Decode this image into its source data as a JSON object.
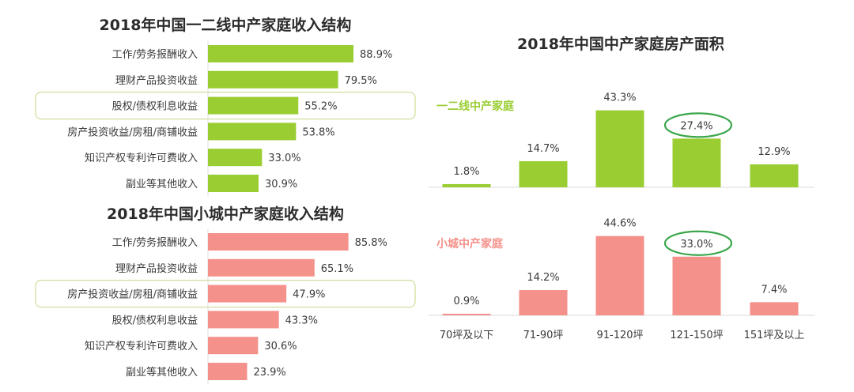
{
  "colors": {
    "green": "#9ACD32",
    "pink": "#F4918A",
    "highlight_outline": "#cfe0a0",
    "circle": "#3aa64a",
    "text": "#3a3a3a"
  },
  "chart_data": [
    {
      "type": "bar",
      "orientation": "horizontal",
      "title": "2018年中国一二线中产家庭收入结构",
      "categories": [
        "工作/劳务报酬收入",
        "理财产品投资收益",
        "股权/债权利息收益",
        "房产投资收益/房租/商铺收益",
        "知识产权专利许可费收入",
        "副业等其他收入"
      ],
      "values": [
        88.9,
        79.5,
        55.2,
        53.8,
        33.0,
        30.9
      ],
      "value_labels": [
        "88.9%",
        "79.5%",
        "55.2%",
        "53.8%",
        "33.0%",
        "30.9%"
      ],
      "highlighted_category": "股权/债权利息收益",
      "color": "#9ACD32"
    },
    {
      "type": "bar",
      "orientation": "horizontal",
      "title": "2018年中国小城中产家庭收入结构",
      "categories": [
        "工作/劳务报酬收入",
        "理财产品投资收益",
        "房产投资收益/房租/商铺收益",
        "股权/债权利息收益",
        "知识产权专利许可费收入",
        "副业等其他收入"
      ],
      "values": [
        85.8,
        65.1,
        47.9,
        43.3,
        30.6,
        23.9
      ],
      "value_labels": [
        "85.8%",
        "65.1%",
        "47.9%",
        "43.3%",
        "30.6%",
        "23.9%"
      ],
      "highlighted_category": "房产投资收益/房租/商铺收益",
      "color": "#F4918A"
    },
    {
      "type": "bar",
      "title": "2018年中国中产家庭房产面积",
      "categories": [
        "70坪及以下",
        "71-90坪",
        "91-120坪",
        "121-150坪",
        "151坪及以上"
      ],
      "series": [
        {
          "name": "一二线中产家庭",
          "values": [
            1.8,
            14.7,
            43.3,
            27.4,
            12.9
          ],
          "value_labels": [
            "1.8%",
            "14.7%",
            "43.3%",
            "27.4%",
            "12.9%"
          ],
          "circled_category": "121-150坪",
          "color": "#9ACD32"
        },
        {
          "name": "小城中产家庭",
          "values": [
            0.9,
            14.2,
            44.6,
            33.0,
            7.4
          ],
          "value_labels": [
            "0.9%",
            "14.2%",
            "44.6%",
            "33.0%",
            "7.4%"
          ],
          "circled_category": "121-150坪",
          "color": "#F4918A"
        }
      ]
    }
  ]
}
